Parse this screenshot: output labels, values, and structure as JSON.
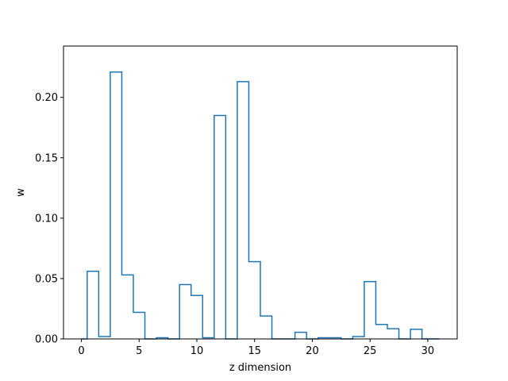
{
  "chart_data": {
    "type": "step",
    "title": "",
    "xlabel": "z dimension",
    "ylabel": "w",
    "xlim": [
      -1.55,
      32.55
    ],
    "ylim": [
      0,
      0.2425
    ],
    "x_ticks": [
      0,
      5,
      10,
      15,
      20,
      25,
      30
    ],
    "x_tick_labels": [
      "0",
      "5",
      "10",
      "15",
      "20",
      "25",
      "30"
    ],
    "y_ticks": [
      0.0,
      0.05,
      0.1,
      0.15,
      0.2
    ],
    "y_tick_labels": [
      "0.00",
      "0.05",
      "0.10",
      "0.15",
      "0.20"
    ],
    "grid": false,
    "legend": "none",
    "color": "#1f77b4",
    "series": [
      {
        "x": [
          0,
          1,
          2,
          3,
          4,
          5,
          6,
          7,
          8,
          9,
          10,
          11,
          12,
          13,
          14,
          15,
          16,
          17,
          18,
          19,
          20,
          21,
          22,
          23,
          24,
          25,
          26,
          27,
          28,
          29,
          30
        ],
        "values": [
          0.0,
          0.056,
          0.002,
          0.221,
          0.053,
          0.022,
          0.0,
          0.001,
          0.0,
          0.045,
          0.036,
          0.001,
          0.185,
          0.0,
          0.213,
          0.064,
          0.019,
          0.0,
          0.0,
          0.0055,
          0.0,
          0.001,
          0.001,
          0.0,
          0.002,
          0.0475,
          0.012,
          0.0085,
          0.0,
          0.008,
          0.0
        ]
      }
    ]
  }
}
